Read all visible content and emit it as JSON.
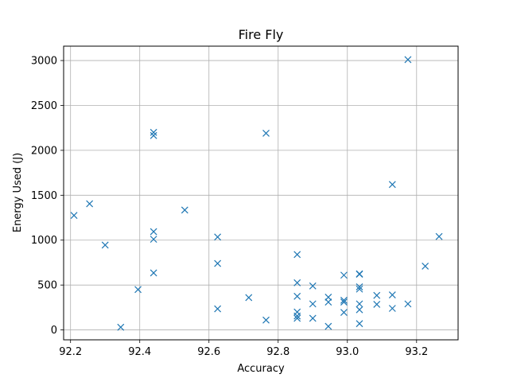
{
  "chart_data": {
    "type": "scatter",
    "title": "Fire Fly",
    "xlabel": "Accuracy",
    "ylabel": "Energy Used (J)",
    "xlim": [
      92.18,
      93.32
    ],
    "ylim": [
      -110,
      3160
    ],
    "xticks": [
      92.2,
      92.4,
      92.6,
      92.8,
      93.0,
      93.2
    ],
    "xtick_labels": [
      "92.2",
      "92.4",
      "92.6",
      "92.8",
      "93.0",
      "93.2"
    ],
    "yticks": [
      0,
      500,
      1000,
      1500,
      2000,
      2500,
      3000
    ],
    "ytick_labels": [
      "0",
      "500",
      "1000",
      "1500",
      "2000",
      "2500",
      "3000"
    ],
    "grid": true,
    "marker": "x",
    "color": "#1f77b4",
    "series": [
      {
        "points": [
          [
            92.21,
            1275
          ],
          [
            92.255,
            1405
          ],
          [
            92.3,
            945
          ],
          [
            92.345,
            30
          ],
          [
            92.395,
            450
          ],
          [
            92.44,
            2200
          ],
          [
            92.44,
            2165
          ],
          [
            92.44,
            1095
          ],
          [
            92.44,
            1010
          ],
          [
            92.44,
            635
          ],
          [
            92.53,
            1335
          ],
          [
            92.625,
            1035
          ],
          [
            92.625,
            740
          ],
          [
            92.625,
            235
          ],
          [
            92.715,
            360
          ],
          [
            92.765,
            2190
          ],
          [
            92.765,
            110
          ],
          [
            92.855,
            840
          ],
          [
            92.855,
            525
          ],
          [
            92.855,
            375
          ],
          [
            92.855,
            200
          ],
          [
            92.855,
            155
          ],
          [
            92.855,
            130
          ],
          [
            92.9,
            490
          ],
          [
            92.9,
            290
          ],
          [
            92.9,
            130
          ],
          [
            92.945,
            365
          ],
          [
            92.945,
            310
          ],
          [
            92.945,
            40
          ],
          [
            92.99,
            610
          ],
          [
            92.99,
            330
          ],
          [
            92.99,
            310
          ],
          [
            92.99,
            195
          ],
          [
            93.035,
            625
          ],
          [
            93.035,
            620
          ],
          [
            93.035,
            480
          ],
          [
            93.035,
            455
          ],
          [
            93.035,
            290
          ],
          [
            93.035,
            225
          ],
          [
            93.035,
            70
          ],
          [
            93.085,
            385
          ],
          [
            93.085,
            285
          ],
          [
            93.13,
            1620
          ],
          [
            93.13,
            390
          ],
          [
            93.13,
            240
          ],
          [
            93.175,
            3010
          ],
          [
            93.175,
            290
          ],
          [
            93.225,
            710
          ],
          [
            93.265,
            1040
          ]
        ]
      }
    ]
  }
}
